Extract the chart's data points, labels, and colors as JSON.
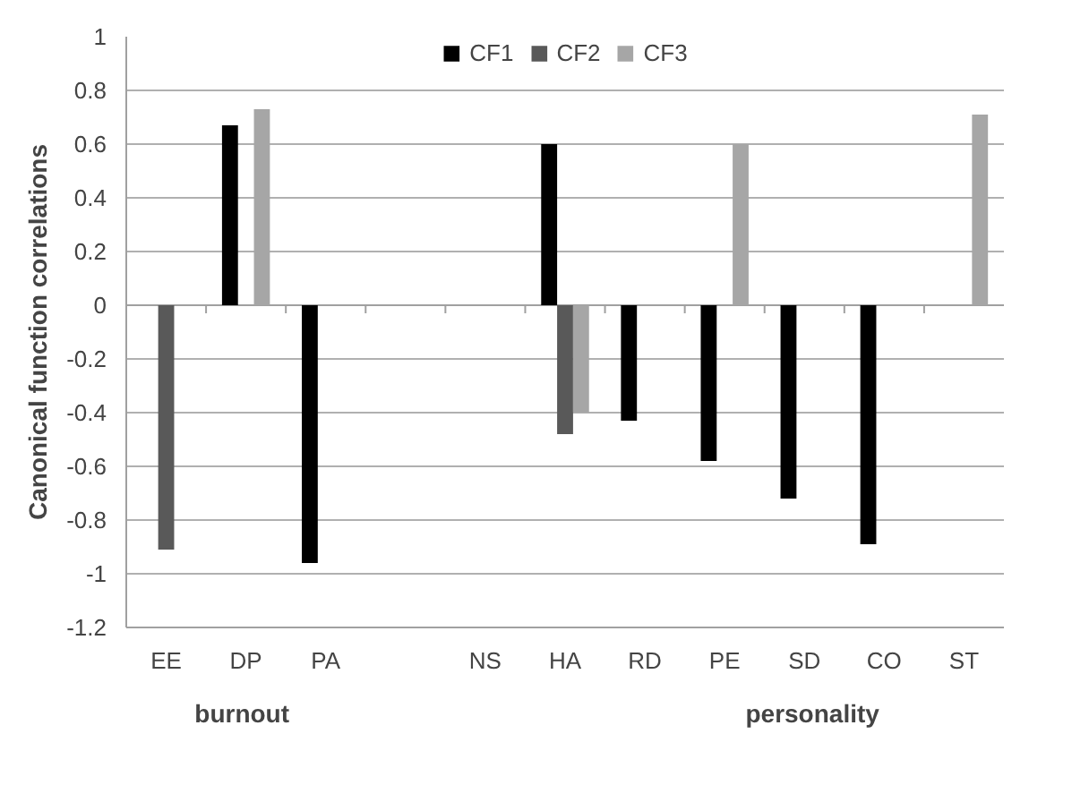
{
  "chart_data": {
    "type": "bar",
    "ylabel": "Canonical function correlations",
    "categories": [
      "EE",
      "DP",
      "PA",
      null,
      "NS",
      "HA",
      "RD",
      "PE",
      "SD",
      "CO",
      "ST"
    ],
    "series": [
      {
        "name": "CF1",
        "color": "#000000",
        "values": [
          null,
          0.67,
          -0.96,
          null,
          null,
          0.6,
          -0.43,
          -0.58,
          -0.72,
          -0.89,
          null
        ]
      },
      {
        "name": "CF2",
        "color": "#595959",
        "values": [
          -0.91,
          null,
          null,
          null,
          null,
          -0.48,
          null,
          null,
          null,
          null,
          null
        ]
      },
      {
        "name": "CF3",
        "color": "#a6a6a6",
        "values": [
          null,
          0.73,
          null,
          null,
          null,
          -0.4,
          null,
          0.6,
          null,
          null,
          0.71
        ]
      }
    ],
    "ylim": [
      -1.2,
      1
    ],
    "yticks": [
      -1.2,
      -1,
      -0.8,
      -0.6,
      -0.4,
      -0.2,
      0,
      0.2,
      0.4,
      0.6,
      0.8,
      1
    ],
    "grid": "y",
    "legend": "top",
    "annotations": [
      "burnout",
      "personality"
    ]
  }
}
